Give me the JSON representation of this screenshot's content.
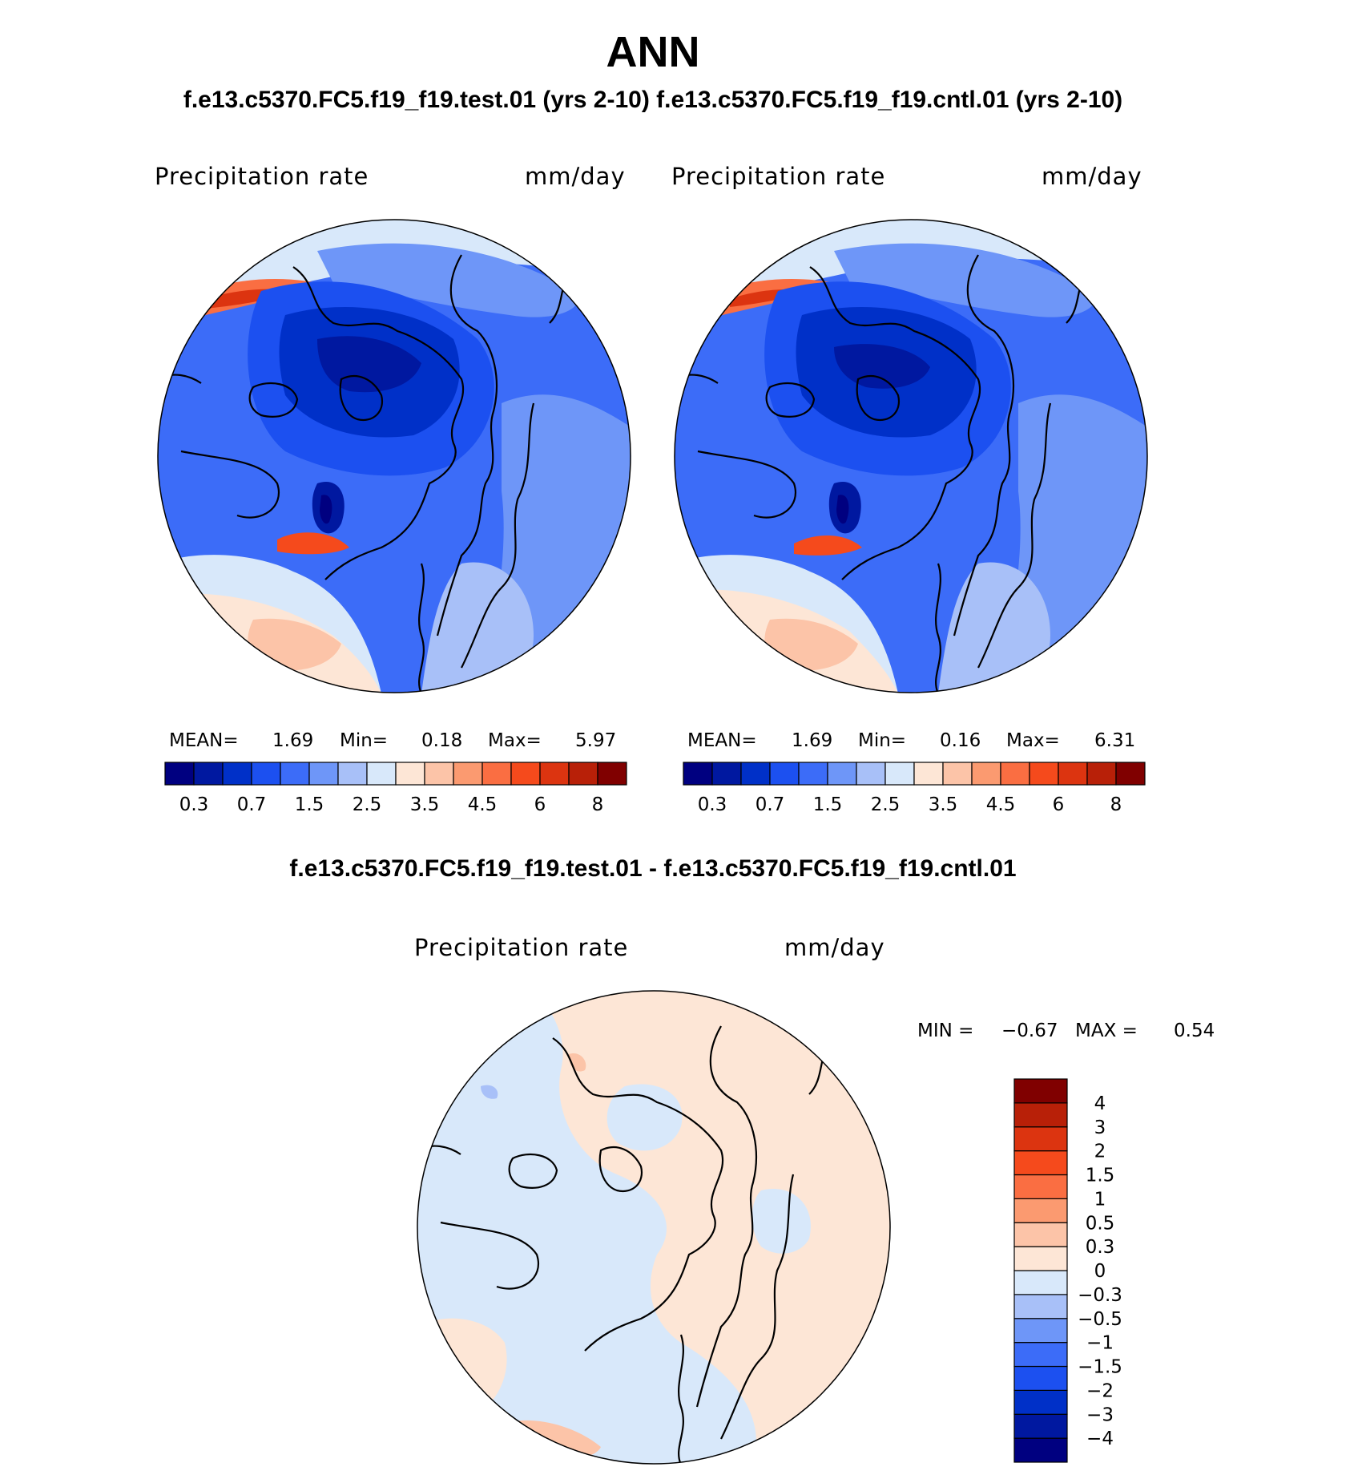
{
  "title": "ANN",
  "case_title": "f.e13.c5370.FC5.f19_f19.test.01 (yrs 2-10) f.e13.c5370.FC5.f19_f19.cntl.01 (yrs 2-10)",
  "diff_title": "f.e13.c5370.FC5.f19_f19.test.01 - f.e13.c5370.FC5.f19_f19.cntl.01",
  "panels": [
    {
      "variable": "Precipitation rate",
      "units": "mm/day",
      "stats": {
        "mean_label": "MEAN=",
        "mean": "1.69",
        "min_label": "Min=",
        "min": "0.18",
        "max_label": "Max=",
        "max": "5.97"
      }
    },
    {
      "variable": "Precipitation rate",
      "units": "mm/day",
      "stats": {
        "mean_label": "MEAN=",
        "mean": "1.69",
        "min_label": "Min=",
        "min": "0.16",
        "max_label": "Max=",
        "max": "6.31"
      }
    },
    {
      "variable": "Precipitation rate",
      "units": "mm/day",
      "stats": {
        "min_label": "MIN =",
        "min": "−0.67",
        "max_label": "MAX =",
        "max": "0.54"
      }
    }
  ],
  "colorbar_main": {
    "colors": [
      "#000080",
      "#0018a0",
      "#0030c8",
      "#1c50f0",
      "#3c6cf8",
      "#6e96f8",
      "#a8c0f8",
      "#d8e8fa",
      "#fde6d6",
      "#fcc4a8",
      "#fb9a70",
      "#fa6e42",
      "#f54a1c",
      "#dc3410",
      "#b82008",
      "#800000"
    ],
    "tick_labels": [
      "0.3",
      "0.7",
      "1.5",
      "2.5",
      "3.5",
      "4.5",
      "6",
      "8"
    ]
  },
  "colorbar_diff": {
    "colors": [
      "#000080",
      "#0018a0",
      "#0030c8",
      "#1c50f0",
      "#3c6cf8",
      "#6e96f8",
      "#a8c0f8",
      "#d8e8fa",
      "#fde6d6",
      "#fcc4a8",
      "#fb9a70",
      "#fa6e42",
      "#f54a1c",
      "#dc3410",
      "#b82008",
      "#800000"
    ],
    "tick_labels": [
      "4",
      "3",
      "2",
      "1.5",
      "1",
      "0.5",
      "0.3",
      "0",
      "−0.3",
      "−0.5",
      "−1",
      "−1.5",
      "−2",
      "−3",
      "−4"
    ]
  }
}
